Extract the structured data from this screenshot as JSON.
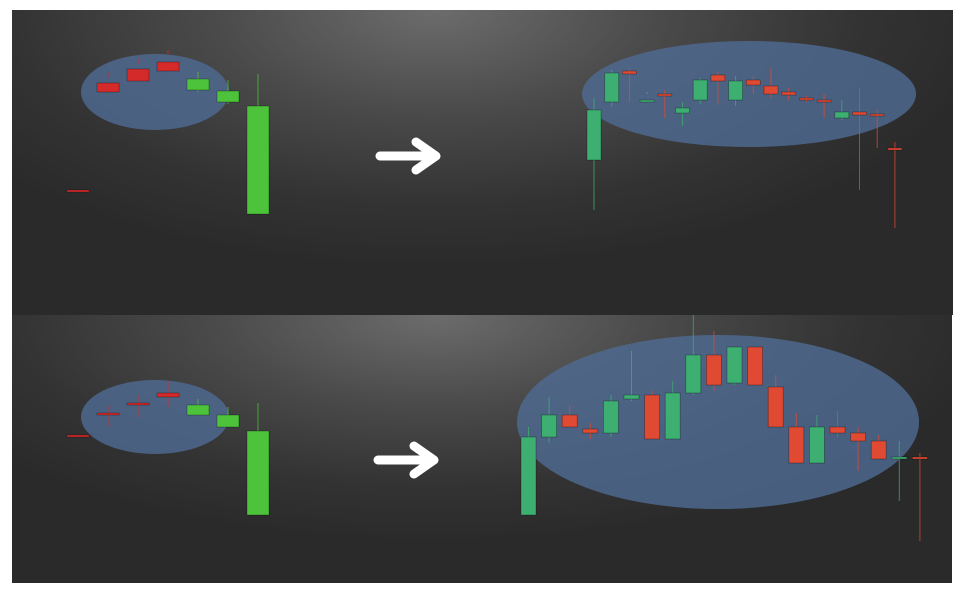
{
  "colors": {
    "bear_bright": "#d42a2a",
    "bull_bright": "#4cc33a",
    "bear_soft": "#e04a33",
    "bull_soft": "#3db071",
    "ellipse_fill": "#4f6a92",
    "arrow": "#ffffff"
  },
  "icons": {
    "transition": "right-arrow-icon"
  },
  "chart_data": [
    {
      "type": "candlestick",
      "panel": "top",
      "side": "pattern",
      "highlighted_range": [
        1,
        5
      ],
      "ohlc": [
        [
          180,
          180,
          88,
          88,
          "bear"
        ],
        [
          73,
          82,
          68,
          62,
          "bear"
        ],
        [
          59,
          71,
          54,
          48,
          "bear"
        ],
        [
          52,
          61,
          44,
          40,
          "bear"
        ],
        [
          80,
          69,
          82,
          62,
          "bull"
        ],
        [
          92,
          81,
          94,
          70,
          "bull"
        ],
        [
          204,
          96,
          180,
          64,
          "bull"
        ]
      ]
    },
    {
      "type": "candlestick",
      "panel": "top",
      "side": "example",
      "highlighted_range": [
        1,
        17
      ],
      "ohlc": [
        [
          150,
          100,
          200,
          88,
          "bull"
        ],
        [
          92,
          63,
          97,
          60,
          "bull"
        ],
        [
          64,
          61,
          92,
          58,
          "bear"
        ],
        [
          90,
          90,
          84,
          82,
          "bull"
        ],
        [
          84,
          84,
          108,
          80,
          "bear"
        ],
        [
          103,
          98,
          116,
          92,
          "bull"
        ],
        [
          90,
          70,
          94,
          68,
          "bull"
        ],
        [
          71,
          65,
          94,
          62,
          "bear"
        ],
        [
          90,
          71,
          96,
          66,
          "bull"
        ],
        [
          75,
          70,
          84,
          66,
          "bear"
        ],
        [
          84,
          76,
          88,
          58,
          "bear"
        ],
        [
          85,
          82,
          90,
          78,
          "bear"
        ],
        [
          90,
          88,
          92,
          86,
          "bear"
        ],
        [
          92,
          90,
          108,
          84,
          "bear"
        ],
        [
          108,
          102,
          110,
          90,
          "bull"
        ],
        [
          105,
          102,
          180,
          78,
          "bear"
        ],
        [
          104,
          104,
          138,
          100,
          "bear"
        ],
        [
          138,
          138,
          218,
          132,
          "bear"
        ]
      ]
    },
    {
      "type": "candlestick",
      "panel": "bottom",
      "side": "pattern",
      "highlighted_range": [
        1,
        5
      ],
      "ohlc": [
        [
          120,
          120,
          202,
          202,
          "bear"
        ],
        [
          98,
          100,
          112,
          90,
          "bear"
        ],
        [
          88,
          90,
          102,
          80,
          "bear"
        ],
        [
          78,
          82,
          92,
          66,
          "bear"
        ],
        [
          100,
          90,
          100,
          84,
          "bull"
        ],
        [
          112,
          100,
          112,
          92,
          "bull"
        ],
        [
          200,
          116,
          200,
          88,
          "bull"
        ]
      ]
    },
    {
      "type": "candlestick",
      "panel": "bottom",
      "side": "example",
      "highlighted_range": [
        1,
        19
      ],
      "ohlc": [
        [
          200,
          122,
          200,
          112,
          "bull"
        ],
        [
          122,
          100,
          128,
          82,
          "bull"
        ],
        [
          112,
          100,
          112,
          90,
          "bear"
        ],
        [
          118,
          114,
          124,
          108,
          "bear"
        ],
        [
          118,
          86,
          122,
          80,
          "bull"
        ],
        [
          84,
          80,
          86,
          36,
          "bull"
        ],
        [
          124,
          80,
          124,
          76,
          "bear"
        ],
        [
          124,
          78,
          124,
          66,
          "bull"
        ],
        [
          78,
          40,
          80,
          0,
          "bull"
        ],
        [
          70,
          40,
          76,
          16,
          "bear"
        ],
        [
          68,
          32,
          70,
          32,
          "bull"
        ],
        [
          70,
          32,
          70,
          32,
          "bear"
        ],
        [
          112,
          72,
          112,
          60,
          "bear"
        ],
        [
          148,
          112,
          148,
          98,
          "bear"
        ],
        [
          148,
          112,
          148,
          100,
          "bull"
        ],
        [
          118,
          112,
          122,
          96,
          "bear"
        ],
        [
          126,
          118,
          156,
          112,
          "bear"
        ],
        [
          144,
          126,
          144,
          120,
          "bear"
        ],
        [
          144,
          142,
          186,
          126,
          "bull"
        ],
        [
          142,
          142,
          226,
          138,
          "bear"
        ]
      ]
    }
  ]
}
